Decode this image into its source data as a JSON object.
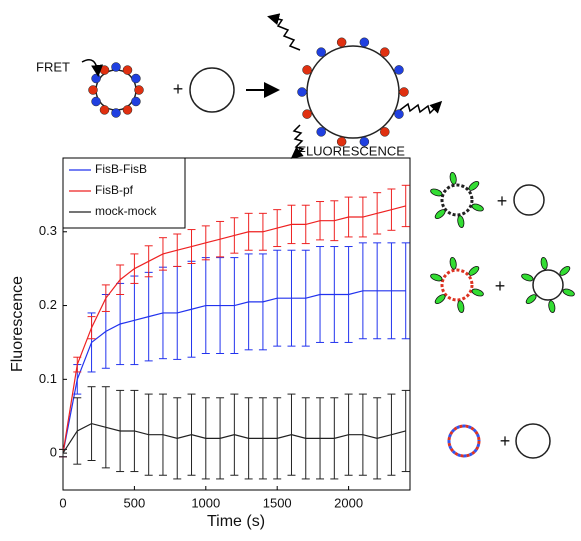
{
  "chart_data": {
    "type": "line",
    "x_label": "Time (s)",
    "y_label": "Fluorescence",
    "x": [
      0,
      100,
      200,
      300,
      400,
      500,
      600,
      700,
      800,
      900,
      1000,
      1100,
      1200,
      1300,
      1400,
      1500,
      1600,
      1700,
      1800,
      1900,
      2000,
      2100,
      2200,
      2300,
      2400
    ],
    "xlim": [
      0,
      2430
    ],
    "xticks": [
      0,
      500,
      1000,
      1500,
      2000
    ],
    "ylim": [
      -0.05,
      0.4
    ],
    "yticks": [
      0,
      0.1,
      0.2,
      0.3
    ],
    "legend": "upper left",
    "series": [
      {
        "name": "FisB-FisB",
        "color": "#2233ee",
        "values": [
          0,
          0.1,
          0.15,
          0.165,
          0.175,
          0.18,
          0.185,
          0.19,
          0.19,
          0.195,
          0.2,
          0.2,
          0.2,
          0.205,
          0.205,
          0.21,
          0.21,
          0.21,
          0.215,
          0.215,
          0.215,
          0.22,
          0.22,
          0.22,
          0.22
        ],
        "errors": [
          0.005,
          0.02,
          0.04,
          0.05,
          0.055,
          0.06,
          0.06,
          0.062,
          0.063,
          0.065,
          0.065,
          0.065,
          0.065,
          0.065,
          0.065,
          0.065,
          0.065,
          0.065,
          0.065,
          0.065,
          0.065,
          0.065,
          0.065,
          0.065,
          0.065
        ]
      },
      {
        "name": "FisB-pf",
        "color": "#ee2222",
        "values": [
          0,
          0.12,
          0.17,
          0.21,
          0.235,
          0.25,
          0.26,
          0.27,
          0.275,
          0.28,
          0.285,
          0.29,
          0.295,
          0.3,
          0.3,
          0.305,
          0.31,
          0.31,
          0.315,
          0.315,
          0.32,
          0.32,
          0.325,
          0.33,
          0.335
        ],
        "errors": [
          0.005,
          0.01,
          0.015,
          0.018,
          0.02,
          0.02,
          0.021,
          0.022,
          0.022,
          0.023,
          0.023,
          0.024,
          0.024,
          0.025,
          0.025,
          0.025,
          0.026,
          0.026,
          0.026,
          0.027,
          0.027,
          0.027,
          0.028,
          0.028,
          0.028
        ]
      },
      {
        "name": "mock-mock",
        "color": "#222222",
        "values": [
          0,
          0.03,
          0.04,
          0.035,
          0.03,
          0.03,
          0.025,
          0.025,
          0.02,
          0.025,
          0.02,
          0.02,
          0.025,
          0.02,
          0.02,
          0.02,
          0.025,
          0.02,
          0.02,
          0.02,
          0.025,
          0.025,
          0.02,
          0.025,
          0.03
        ],
        "errors": [
          0.005,
          0.045,
          0.05,
          0.055,
          0.055,
          0.055,
          0.055,
          0.055,
          0.055,
          0.055,
          0.055,
          0.055,
          0.055,
          0.055,
          0.055,
          0.055,
          0.055,
          0.055,
          0.055,
          0.055,
          0.055,
          0.055,
          0.055,
          0.055,
          0.055
        ]
      }
    ]
  },
  "diagram": {
    "fret": "FRET",
    "fluorescence": "FLUORESCENCE",
    "plus": "+"
  }
}
